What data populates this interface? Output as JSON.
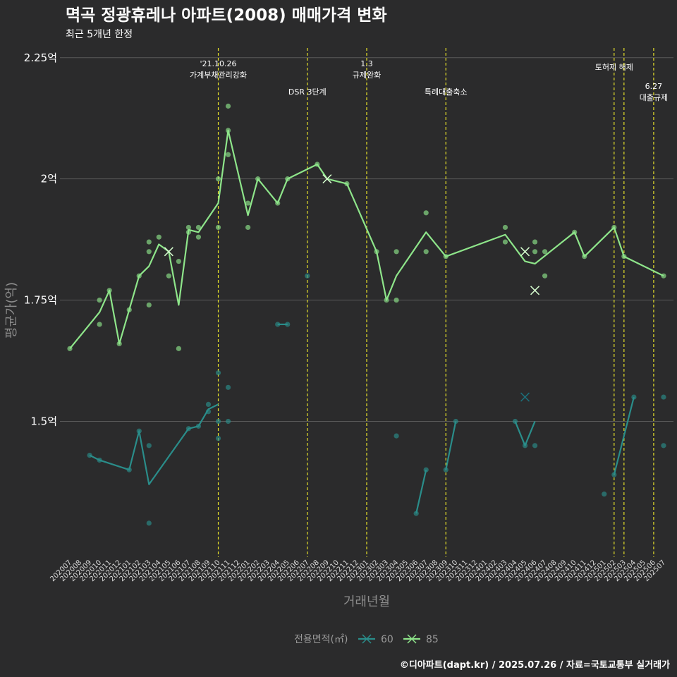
{
  "title": "멱곡 정광휴레나 아파트(2008) 매매가격 변화",
  "subtitle": "최근 5개년 한정",
  "caption": "©디아파트(dapt.kr) / 2025.07.26 / 자료=국토교통부 실거래가",
  "colors": {
    "background": "#2b2b2c",
    "grid": "#5a5a5a",
    "s60": "#2a8d8a",
    "s85": "#8ee58a",
    "vline": "#e6e12a"
  },
  "chart_data": {
    "type": "line",
    "xlabel": "거래년월",
    "ylabel": "평균가(억)",
    "ylim": [
      1.22,
      2.27
    ],
    "y_ticks": [
      {
        "value": 1.5,
        "label": "1.5억"
      },
      {
        "value": 1.75,
        "label": "1.75억"
      },
      {
        "value": 2.0,
        "label": "2억"
      },
      {
        "value": 2.25,
        "label": "2.25억"
      }
    ],
    "x_categories": [
      "202007",
      "202008",
      "202009",
      "202010",
      "202011",
      "202012",
      "202101",
      "202102",
      "202103",
      "202104",
      "202105",
      "202106",
      "202107",
      "202108",
      "202109",
      "202110",
      "202111",
      "202112",
      "202201",
      "202202",
      "202203",
      "202204",
      "202205",
      "202206",
      "202207",
      "202208",
      "202209",
      "202210",
      "202211",
      "202212",
      "202301",
      "202302",
      "202303",
      "202304",
      "202305",
      "202306",
      "202307",
      "202308",
      "202309",
      "202310",
      "202311",
      "202312",
      "202401",
      "202402",
      "202403",
      "202404",
      "202405",
      "202406",
      "202407",
      "202408",
      "202409",
      "202410",
      "202411",
      "202412",
      "202501",
      "202502",
      "202503",
      "202504",
      "202505",
      "202506",
      "202507"
    ],
    "legend": {
      "title": "전용면적(㎡)",
      "position": "bottom",
      "entries": [
        "60",
        "85"
      ]
    },
    "series": [
      {
        "name": "60",
        "color": "#2a8d8a",
        "line_segments": [
          [
            [
              "202009",
              1.43
            ],
            [
              "202010",
              1.42
            ],
            [
              "202101",
              1.4
            ],
            [
              "202102",
              1.48
            ],
            [
              "202103",
              1.37
            ],
            [
              "202107",
              1.485
            ],
            [
              "202108",
              1.49
            ],
            [
              "202109",
              1.525
            ],
            [
              "202110",
              1.535
            ]
          ],
          [
            [
              "202204",
              1.7
            ],
            [
              "202205",
              1.7
            ]
          ],
          [
            [
              "202306",
              1.31
            ],
            [
              "202307",
              1.4
            ]
          ],
          [
            [
              "202309",
              1.4
            ],
            [
              "202310",
              1.5
            ]
          ],
          [
            [
              "202404",
              1.5
            ],
            [
              "202405",
              1.45
            ],
            [
              "202406",
              1.5
            ]
          ],
          [
            [
              "202502",
              1.39
            ],
            [
              "202504",
              1.55
            ]
          ]
        ],
        "points": [
          [
            "202009",
            1.43
          ],
          [
            "202010",
            1.42
          ],
          [
            "202101",
            1.4
          ],
          [
            "202102",
            1.48
          ],
          [
            "202103",
            1.45
          ],
          [
            "202103",
            1.29
          ],
          [
            "202107",
            1.485
          ],
          [
            "202108",
            1.49
          ],
          [
            "202109",
            1.535
          ],
          [
            "202109",
            1.52
          ],
          [
            "202110",
            1.6
          ],
          [
            "202110",
            1.5
          ],
          [
            "202110",
            1.465
          ],
          [
            "202111",
            1.57
          ],
          [
            "202111",
            1.5
          ],
          [
            "202204",
            1.7
          ],
          [
            "202205",
            1.7
          ],
          [
            "202207",
            1.8
          ],
          [
            "202304",
            1.47
          ],
          [
            "202306",
            1.31
          ],
          [
            "202307",
            1.4
          ],
          [
            "202309",
            1.4
          ],
          [
            "202310",
            1.5
          ],
          [
            "202404",
            1.5
          ],
          [
            "202405",
            1.45
          ],
          [
            "202406",
            1.45
          ],
          [
            "202501",
            1.35
          ],
          [
            "202502",
            1.39
          ],
          [
            "202504",
            1.55
          ],
          [
            "202507",
            1.55
          ],
          [
            "202507",
            1.45
          ]
        ],
        "cross_markers": [
          [
            "202405",
            1.55
          ]
        ]
      },
      {
        "name": "85",
        "color": "#8ee58a",
        "line_segments": [
          [
            [
              "202007",
              1.65
            ],
            [
              "202010",
              1.725
            ],
            [
              "202011",
              1.77
            ],
            [
              "202012",
              1.66
            ],
            [
              "202102",
              1.8
            ],
            [
              "202103",
              1.82
            ],
            [
              "202104",
              1.865
            ],
            [
              "202105",
              1.85
            ],
            [
              "202106",
              1.74
            ],
            [
              "202107",
              1.895
            ],
            [
              "202108",
              1.89
            ],
            [
              "202110",
              1.95
            ],
            [
              "202111",
              2.1
            ],
            [
              "202201",
              1.925
            ],
            [
              "202202",
              2.0
            ],
            [
              "202204",
              1.95
            ],
            [
              "202205",
              2.0
            ],
            [
              "202208",
              2.03
            ],
            [
              "202209",
              2.0
            ],
            [
              "202211",
              1.99
            ],
            [
              "202302",
              1.85
            ],
            [
              "202303",
              1.75
            ],
            [
              "202304",
              1.8
            ],
            [
              "202307",
              1.89
            ],
            [
              "202309",
              1.84
            ],
            [
              "202403",
              1.885
            ],
            [
              "202405",
              1.83
            ],
            [
              "202406",
              1.825
            ],
            [
              "202410",
              1.89
            ],
            [
              "202411",
              1.84
            ],
            [
              "202502",
              1.9
            ],
            [
              "202503",
              1.84
            ],
            [
              "202507",
              1.8
            ]
          ]
        ],
        "points": [
          [
            "202007",
            1.65
          ],
          [
            "202010",
            1.75
          ],
          [
            "202010",
            1.7
          ],
          [
            "202011",
            1.77
          ],
          [
            "202012",
            1.66
          ],
          [
            "202101",
            1.73
          ],
          [
            "202102",
            1.8
          ],
          [
            "202103",
            1.87
          ],
          [
            "202103",
            1.85
          ],
          [
            "202103",
            1.74
          ],
          [
            "202104",
            1.88
          ],
          [
            "202105",
            1.8
          ],
          [
            "202106",
            1.83
          ],
          [
            "202106",
            1.65
          ],
          [
            "202107",
            1.9
          ],
          [
            "202107",
            1.89
          ],
          [
            "202108",
            1.9
          ],
          [
            "202108",
            1.88
          ],
          [
            "202110",
            2.0
          ],
          [
            "202110",
            1.9
          ],
          [
            "202111",
            2.15
          ],
          [
            "202111",
            2.1
          ],
          [
            "202111",
            2.05
          ],
          [
            "202201",
            1.95
          ],
          [
            "202201",
            1.9
          ],
          [
            "202202",
            2.0
          ],
          [
            "202204",
            1.95
          ],
          [
            "202205",
            2.0
          ],
          [
            "202208",
            2.03
          ],
          [
            "202211",
            1.99
          ],
          [
            "202302",
            1.85
          ],
          [
            "202303",
            1.75
          ],
          [
            "202304",
            1.85
          ],
          [
            "202304",
            1.75
          ],
          [
            "202307",
            1.93
          ],
          [
            "202307",
            1.85
          ],
          [
            "202309",
            1.84
          ],
          [
            "202403",
            1.9
          ],
          [
            "202403",
            1.87
          ],
          [
            "202406",
            1.87
          ],
          [
            "202406",
            1.85
          ],
          [
            "202407",
            1.85
          ],
          [
            "202407",
            1.8
          ],
          [
            "202410",
            1.89
          ],
          [
            "202411",
            1.84
          ],
          [
            "202502",
            1.9
          ],
          [
            "202503",
            1.84
          ],
          [
            "202507",
            1.8
          ]
        ],
        "cross_markers": [
          [
            "202105",
            1.85
          ],
          [
            "202209",
            2.0
          ],
          [
            "202405",
            1.85
          ],
          [
            "202406",
            1.77
          ]
        ]
      }
    ],
    "events": [
      {
        "x": "202110",
        "lines": [
          "'21.10.26",
          "가계부채관리강화"
        ],
        "level": 0
      },
      {
        "x": "202207",
        "lines": [
          "DSR 3단계"
        ],
        "level": 1
      },
      {
        "x": "202301",
        "lines": [
          "1.3",
          "규제완화"
        ],
        "level": 0
      },
      {
        "x": "202309",
        "lines": [
          "특례대출축소"
        ],
        "level": 1
      },
      {
        "x": "202502",
        "lines": [
          "토허제 해제"
        ],
        "level": 0
      },
      {
        "x": "202503",
        "lines": [],
        "level": 0
      },
      {
        "x": "202506",
        "lines": [
          "6.27",
          "대출규제"
        ],
        "level": 2
      }
    ]
  }
}
